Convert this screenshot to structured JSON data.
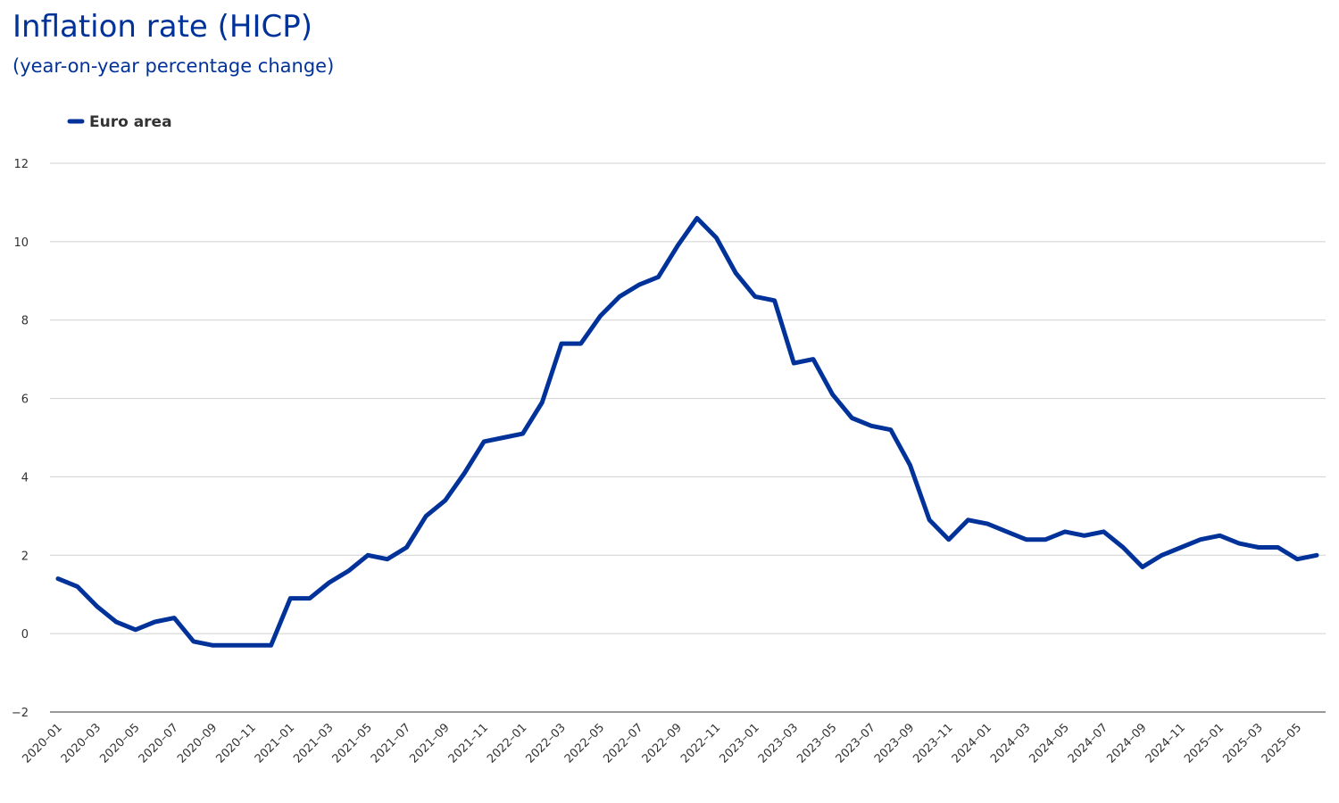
{
  "title": "Inflation rate (HICP)",
  "subtitle": "(year-on-year percentage change)",
  "chart_data": {
    "type": "line",
    "title": "Inflation rate (HICP)",
    "subtitle": "(year-on-year percentage change)",
    "xlabel": "",
    "ylabel": "",
    "ylim": [
      -2,
      12
    ],
    "yticks": [
      -2,
      0,
      2,
      4,
      6,
      8,
      10,
      12
    ],
    "grid": true,
    "legend": "top-left",
    "x": [
      "2020-01",
      "2020-02",
      "2020-03",
      "2020-04",
      "2020-05",
      "2020-06",
      "2020-07",
      "2020-08",
      "2020-09",
      "2020-10",
      "2020-11",
      "2020-12",
      "2021-01",
      "2021-02",
      "2021-03",
      "2021-04",
      "2021-05",
      "2021-06",
      "2021-07",
      "2021-08",
      "2021-09",
      "2021-10",
      "2021-11",
      "2021-12",
      "2022-01",
      "2022-02",
      "2022-03",
      "2022-04",
      "2022-05",
      "2022-06",
      "2022-07",
      "2022-08",
      "2022-09",
      "2022-10",
      "2022-11",
      "2022-12",
      "2023-01",
      "2023-02",
      "2023-03",
      "2023-04",
      "2023-05",
      "2023-06",
      "2023-07",
      "2023-08",
      "2023-09",
      "2023-10",
      "2023-11",
      "2023-12",
      "2024-01",
      "2024-02",
      "2024-03",
      "2024-04",
      "2024-05",
      "2024-06",
      "2024-07",
      "2024-08",
      "2024-09",
      "2024-10",
      "2024-11",
      "2024-12",
      "2025-01",
      "2025-02",
      "2025-03",
      "2025-04",
      "2025-05",
      "2025-06"
    ],
    "xtick_labels": [
      "2020-01",
      "2020-03",
      "2020-05",
      "2020-07",
      "2020-09",
      "2020-11",
      "2021-01",
      "2021-03",
      "2021-05",
      "2021-07",
      "2021-09",
      "2021-11",
      "2022-01",
      "2022-03",
      "2022-05",
      "2022-07",
      "2022-09",
      "2022-11",
      "2023-01",
      "2023-03",
      "2023-05",
      "2023-07",
      "2023-09",
      "2023-11",
      "2024-01",
      "2024-03",
      "2024-05",
      "2024-07",
      "2024-09",
      "2024-11",
      "2025-01",
      "2025-03",
      "2025-05"
    ],
    "series": [
      {
        "name": "Euro area",
        "color": "#003299",
        "values": [
          1.4,
          1.2,
          0.7,
          0.3,
          0.1,
          0.3,
          0.4,
          -0.2,
          -0.3,
          -0.3,
          -0.3,
          -0.3,
          0.9,
          0.9,
          1.3,
          1.6,
          2.0,
          1.9,
          2.2,
          3.0,
          3.4,
          4.1,
          4.9,
          5.0,
          5.1,
          5.9,
          7.4,
          7.4,
          8.1,
          8.6,
          8.9,
          9.1,
          9.9,
          10.6,
          10.1,
          9.2,
          8.6,
          8.5,
          6.9,
          7.0,
          6.1,
          5.5,
          5.3,
          5.2,
          4.3,
          2.9,
          2.4,
          2.9,
          2.8,
          2.6,
          2.4,
          2.4,
          2.6,
          2.5,
          2.6,
          2.2,
          1.7,
          2.0,
          2.2,
          2.4,
          2.5,
          2.3,
          2.2,
          2.2,
          1.9,
          2.0
        ]
      }
    ]
  }
}
